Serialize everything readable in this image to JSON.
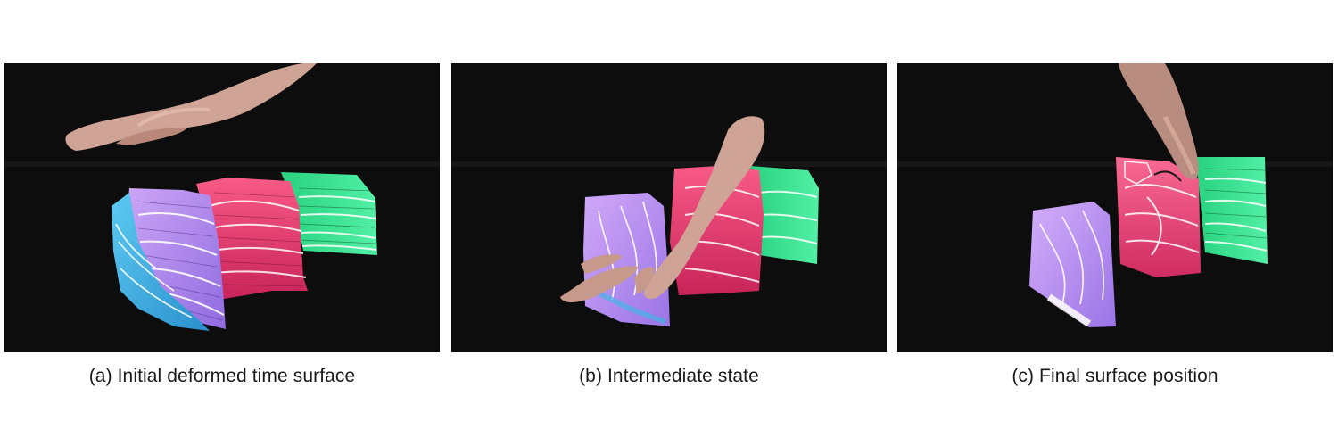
{
  "figure": {
    "panels": [
      {
        "id": "a",
        "caption": "(a) Initial deformed time surface"
      },
      {
        "id": "b",
        "caption": "(b) Intermediate state"
      },
      {
        "id": "c",
        "caption": "(c) Final surface position"
      }
    ],
    "colors": {
      "background": "#0d0d0d",
      "hand": "#cfa396",
      "blue_surface": "#46b4e6",
      "purple_surface": "#b78cf2",
      "red_surface": "#f0406e",
      "green_surface": "#3ee690",
      "streamline": "#ffffff"
    }
  }
}
